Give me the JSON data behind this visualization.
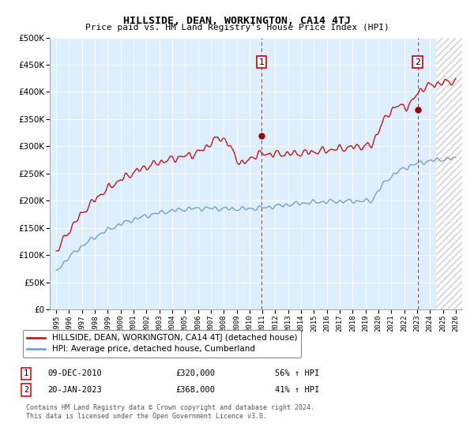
{
  "title": "HILLSIDE, DEAN, WORKINGTON, CA14 4TJ",
  "subtitle": "Price paid vs. HM Land Registry's House Price Index (HPI)",
  "legend_line1": "HILLSIDE, DEAN, WORKINGTON, CA14 4TJ (detached house)",
  "legend_line2": "HPI: Average price, detached house, Cumberland",
  "footnote1": "Contains HM Land Registry data © Crown copyright and database right 2024.",
  "footnote2": "This data is licensed under the Open Government Licence v3.0.",
  "annotation1": {
    "label": "1",
    "date": "09-DEC-2010",
    "price": "£320,000",
    "hpi": "56% ↑ HPI"
  },
  "annotation2": {
    "label": "2",
    "date": "20-JAN-2023",
    "price": "£368,000",
    "hpi": "41% ↑ HPI"
  },
  "red_color": "#cc0000",
  "blue_color": "#6699cc",
  "bg_color": "#ddeeff",
  "marker1_x": 2010.93,
  "marker1_y": 320000,
  "marker2_x": 2023.05,
  "marker2_y": 368000,
  "vline1_x": 2010.93,
  "vline2_x": 2023.05,
  "hatch_start": 2024.5,
  "ylim": [
    0,
    500000
  ],
  "xlim": [
    1994.5,
    2026.5
  ],
  "yticks": [
    0,
    50000,
    100000,
    150000,
    200000,
    250000,
    300000,
    350000,
    400000,
    450000,
    500000
  ],
  "xticks": [
    1995,
    1996,
    1997,
    1998,
    1999,
    2000,
    2001,
    2002,
    2003,
    2004,
    2005,
    2006,
    2007,
    2008,
    2009,
    2010,
    2011,
    2012,
    2013,
    2014,
    2015,
    2016,
    2017,
    2018,
    2019,
    2020,
    2021,
    2022,
    2023,
    2024,
    2025,
    2026
  ]
}
